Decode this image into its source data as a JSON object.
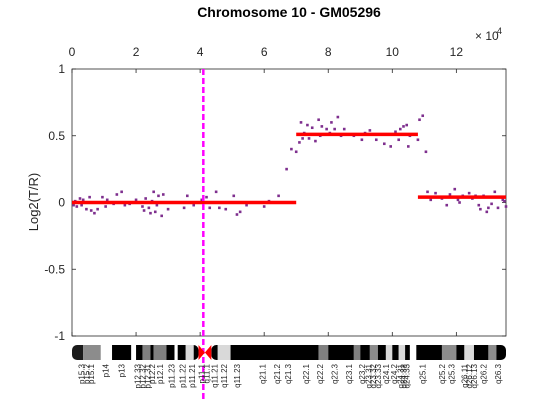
{
  "colors": {
    "points": "#7e2f8e",
    "segments": "#ff0000",
    "marker": "#ff00ff",
    "centromere": "#ff0000",
    "axis": "#262626"
  },
  "chart_data": {
    "type": "scatter",
    "title": "Chromosome 10 - GM05296",
    "ylabel": "Log2(T/R)",
    "xlabel": "",
    "x_exponent_label": "× 10",
    "x_exponent_power": "4",
    "xlim": [
      0,
      13.55
    ],
    "ylim": [
      -1,
      1
    ],
    "x_ticks": [
      0,
      2,
      4,
      6,
      8,
      10,
      12
    ],
    "y_ticks": [
      1,
      0.5,
      0,
      -0.5,
      -1
    ],
    "y_tick_labels": [
      "1",
      "0.5",
      "0",
      "-0.5",
      "-1"
    ],
    "grid": false,
    "legend": "none",
    "marker_line_x": 4.1,
    "segments": [
      {
        "x_start": 0,
        "x_end": 7.0,
        "y": 0.0
      },
      {
        "x_start": 7.0,
        "x_end": 10.8,
        "y": 0.51
      },
      {
        "x_start": 10.8,
        "x_end": 13.55,
        "y": 0.04
      }
    ],
    "points": [
      [
        0.05,
        -0.02
      ],
      [
        0.1,
        0.01
      ],
      [
        0.15,
        -0.03
      ],
      [
        0.25,
        0.03
      ],
      [
        0.3,
        -0.02
      ],
      [
        0.35,
        0.02
      ],
      [
        0.45,
        -0.05
      ],
      [
        0.55,
        0.04
      ],
      [
        0.6,
        -0.06
      ],
      [
        0.7,
        -0.08
      ],
      [
        0.8,
        -0.05
      ],
      [
        0.9,
        0.0
      ],
      [
        0.95,
        0.04
      ],
      [
        1.05,
        -0.03
      ],
      [
        1.1,
        0.02
      ],
      [
        1.3,
        -0.01
      ],
      [
        1.4,
        0.06
      ],
      [
        1.55,
        0.08
      ],
      [
        1.65,
        -0.02
      ],
      [
        1.8,
        -0.01
      ],
      [
        2.0,
        0.02
      ],
      [
        2.2,
        -0.03
      ],
      [
        2.25,
        -0.06
      ],
      [
        2.3,
        0.03
      ],
      [
        2.4,
        -0.04
      ],
      [
        2.45,
        -0.08
      ],
      [
        2.5,
        0.01
      ],
      [
        2.55,
        0.08
      ],
      [
        2.6,
        -0.07
      ],
      [
        2.65,
        -0.02
      ],
      [
        2.7,
        0.05
      ],
      [
        2.8,
        -0.1
      ],
      [
        2.85,
        0.06
      ],
      [
        3.0,
        -0.05
      ],
      [
        3.2,
        0.0
      ],
      [
        3.5,
        -0.04
      ],
      [
        3.6,
        0.05
      ],
      [
        3.8,
        -0.02
      ],
      [
        4.05,
        0.02
      ],
      [
        4.2,
        0.04
      ],
      [
        4.3,
        -0.04
      ],
      [
        4.5,
        0.08
      ],
      [
        4.6,
        -0.04
      ],
      [
        4.8,
        -0.05
      ],
      [
        5.05,
        0.05
      ],
      [
        5.15,
        -0.09
      ],
      [
        5.25,
        -0.07
      ],
      [
        5.45,
        -0.02
      ],
      [
        6.0,
        -0.03
      ],
      [
        6.15,
        0.01
      ],
      [
        6.45,
        0.05
      ],
      [
        6.7,
        0.25
      ],
      [
        6.85,
        0.4
      ],
      [
        7.0,
        0.38
      ],
      [
        7.1,
        0.45
      ],
      [
        7.15,
        0.6
      ],
      [
        7.2,
        0.48
      ],
      [
        7.25,
        0.52
      ],
      [
        7.35,
        0.58
      ],
      [
        7.4,
        0.48
      ],
      [
        7.5,
        0.56
      ],
      [
        7.6,
        0.46
      ],
      [
        7.7,
        0.62
      ],
      [
        7.75,
        0.5
      ],
      [
        7.8,
        0.57
      ],
      [
        7.95,
        0.55
      ],
      [
        8.05,
        0.52
      ],
      [
        8.1,
        0.6
      ],
      [
        8.2,
        0.55
      ],
      [
        8.3,
        0.64
      ],
      [
        8.4,
        0.5
      ],
      [
        8.5,
        0.55
      ],
      [
        8.8,
        0.5
      ],
      [
        9.05,
        0.47
      ],
      [
        9.15,
        0.52
      ],
      [
        9.3,
        0.54
      ],
      [
        9.5,
        0.47
      ],
      [
        9.75,
        0.44
      ],
      [
        9.95,
        0.42
      ],
      [
        10.1,
        0.53
      ],
      [
        10.2,
        0.47
      ],
      [
        10.25,
        0.55
      ],
      [
        10.35,
        0.57
      ],
      [
        10.45,
        0.58
      ],
      [
        10.5,
        0.42
      ],
      [
        10.55,
        0.5
      ],
      [
        10.8,
        0.47
      ],
      [
        10.85,
        0.62
      ],
      [
        10.95,
        0.65
      ],
      [
        11.05,
        0.38
      ],
      [
        11.1,
        0.08
      ],
      [
        11.2,
        0.02
      ],
      [
        11.35,
        0.07
      ],
      [
        11.55,
        0.03
      ],
      [
        11.7,
        -0.02
      ],
      [
        11.8,
        0.06
      ],
      [
        11.95,
        0.1
      ],
      [
        12.05,
        0.02
      ],
      [
        12.1,
        0.0
      ],
      [
        12.2,
        0.05
      ],
      [
        12.4,
        0.07
      ],
      [
        12.5,
        0.03
      ],
      [
        12.6,
        0.05
      ],
      [
        12.7,
        -0.02
      ],
      [
        12.75,
        -0.05
      ],
      [
        12.85,
        0.05
      ],
      [
        12.95,
        -0.07
      ],
      [
        13.0,
        -0.04
      ],
      [
        13.1,
        -0.01
      ],
      [
        13.2,
        0.08
      ],
      [
        13.3,
        -0.04
      ],
      [
        13.45,
        0.02
      ],
      [
        13.5,
        0.01
      ],
      [
        13.55,
        -0.03
      ]
    ],
    "ideogram": {
      "bands": [
        {
          "x_start": 0.0,
          "x_end": 0.35,
          "shade": "#1a1a1a"
        },
        {
          "x_start": 0.35,
          "x_end": 0.9,
          "shade": "#8c8c8c"
        },
        {
          "x_start": 0.9,
          "x_end": 1.25,
          "shade": "#ffffff"
        },
        {
          "x_start": 1.25,
          "x_end": 1.85,
          "shade": "#000000"
        },
        {
          "x_start": 1.85,
          "x_end": 2.0,
          "shade": "#ffffff"
        },
        {
          "x_start": 2.0,
          "x_end": 2.2,
          "shade": "#000000"
        },
        {
          "x_start": 2.2,
          "x_end": 2.45,
          "shade": "#808080"
        },
        {
          "x_start": 2.45,
          "x_end": 2.55,
          "shade": "#000000"
        },
        {
          "x_start": 2.55,
          "x_end": 2.95,
          "shade": "#808080"
        },
        {
          "x_start": 2.95,
          "x_end": 3.2,
          "shade": "#000000"
        },
        {
          "x_start": 3.2,
          "x_end": 3.3,
          "shade": "#ffffff"
        },
        {
          "x_start": 3.3,
          "x_end": 3.55,
          "shade": "#000000"
        },
        {
          "x_start": 3.55,
          "x_end": 3.8,
          "shade": "#d9d9d9"
        },
        {
          "x_start": 3.8,
          "x_end": 3.95,
          "shade": "#000000"
        },
        {
          "x_start": 4.35,
          "x_end": 4.55,
          "shade": "#000000"
        },
        {
          "x_start": 4.55,
          "x_end": 4.95,
          "shade": "#d9d9d9"
        },
        {
          "x_start": 4.95,
          "x_end": 7.7,
          "shade": "#000000"
        },
        {
          "x_start": 7.7,
          "x_end": 8.0,
          "shade": "#808080"
        },
        {
          "x_start": 8.0,
          "x_end": 8.8,
          "shade": "#000000"
        },
        {
          "x_start": 8.8,
          "x_end": 9.0,
          "shade": "#808080"
        },
        {
          "x_start": 9.0,
          "x_end": 9.3,
          "shade": "#000000"
        },
        {
          "x_start": 9.3,
          "x_end": 9.55,
          "shade": "#8c8c8c"
        },
        {
          "x_start": 9.55,
          "x_end": 9.8,
          "shade": "#000000"
        },
        {
          "x_start": 9.8,
          "x_end": 10.0,
          "shade": "#d9d9d9"
        },
        {
          "x_start": 10.0,
          "x_end": 10.2,
          "shade": "#000000"
        },
        {
          "x_start": 10.2,
          "x_end": 10.4,
          "shade": "#d9d9d9"
        },
        {
          "x_start": 10.4,
          "x_end": 10.55,
          "shade": "#000000"
        },
        {
          "x_start": 10.55,
          "x_end": 10.75,
          "shade": "#ffffff"
        },
        {
          "x_start": 10.75,
          "x_end": 11.55,
          "shade": "#000000"
        },
        {
          "x_start": 11.55,
          "x_end": 12.0,
          "shade": "#8c8c8c"
        },
        {
          "x_start": 12.0,
          "x_end": 12.25,
          "shade": "#000000"
        },
        {
          "x_start": 12.25,
          "x_end": 12.55,
          "shade": "#d9d9d9"
        },
        {
          "x_start": 12.55,
          "x_end": 13.0,
          "shade": "#000000"
        },
        {
          "x_start": 13.0,
          "x_end": 13.25,
          "shade": "#8c8c8c"
        },
        {
          "x_start": 13.25,
          "x_end": 13.55,
          "shade": "#000000"
        }
      ],
      "centromere_x": [
        3.95,
        4.35
      ],
      "labels": [
        {
          "x": 0.3,
          "text": "p15.3"
        },
        {
          "x": 0.45,
          "text": "p15.2"
        },
        {
          "x": 0.6,
          "text": "p15.1"
        },
        {
          "x": 1.05,
          "text": "p14"
        },
        {
          "x": 1.55,
          "text": "p13"
        },
        {
          "x": 2.05,
          "text": "p12.33"
        },
        {
          "x": 2.2,
          "text": "p12.32"
        },
        {
          "x": 2.35,
          "text": "p12.31"
        },
        {
          "x": 2.5,
          "text": "p12.2"
        },
        {
          "x": 2.75,
          "text": "p12.1"
        },
        {
          "x": 3.1,
          "text": "p11.23"
        },
        {
          "x": 3.45,
          "text": "p11.22"
        },
        {
          "x": 3.75,
          "text": "p11.21"
        },
        {
          "x": 4.05,
          "text": "p11.1"
        },
        {
          "x": 4.2,
          "text": "q11.1"
        },
        {
          "x": 4.45,
          "text": "q11.21"
        },
        {
          "x": 4.75,
          "text": "q11.22"
        },
        {
          "x": 5.15,
          "text": "q11.23"
        },
        {
          "x": 5.95,
          "text": "q21.1"
        },
        {
          "x": 6.4,
          "text": "q21.2"
        },
        {
          "x": 6.75,
          "text": "q21.3"
        },
        {
          "x": 7.3,
          "text": "q22.1"
        },
        {
          "x": 7.75,
          "text": "q22.2"
        },
        {
          "x": 8.2,
          "text": "q22.3"
        },
        {
          "x": 8.65,
          "text": "q23.1"
        },
        {
          "x": 9.05,
          "text": "q23.2"
        },
        {
          "x": 9.25,
          "text": "q23.31"
        },
        {
          "x": 9.4,
          "text": "q23.32"
        },
        {
          "x": 9.55,
          "text": "q23.33"
        },
        {
          "x": 9.8,
          "text": "q24.1"
        },
        {
          "x": 10.05,
          "text": "q24.2"
        },
        {
          "x": 10.25,
          "text": "q24.31"
        },
        {
          "x": 10.35,
          "text": "q24.32"
        },
        {
          "x": 10.45,
          "text": "q24.33"
        },
        {
          "x": 10.95,
          "text": "q25.1"
        },
        {
          "x": 11.55,
          "text": "q25.2"
        },
        {
          "x": 11.85,
          "text": "q25.3"
        },
        {
          "x": 12.25,
          "text": "q26.11"
        },
        {
          "x": 12.4,
          "text": "q26.12"
        },
        {
          "x": 12.55,
          "text": "q26.13"
        },
        {
          "x": 12.85,
          "text": "q26.2"
        },
        {
          "x": 13.3,
          "text": "q26.3"
        }
      ]
    }
  }
}
